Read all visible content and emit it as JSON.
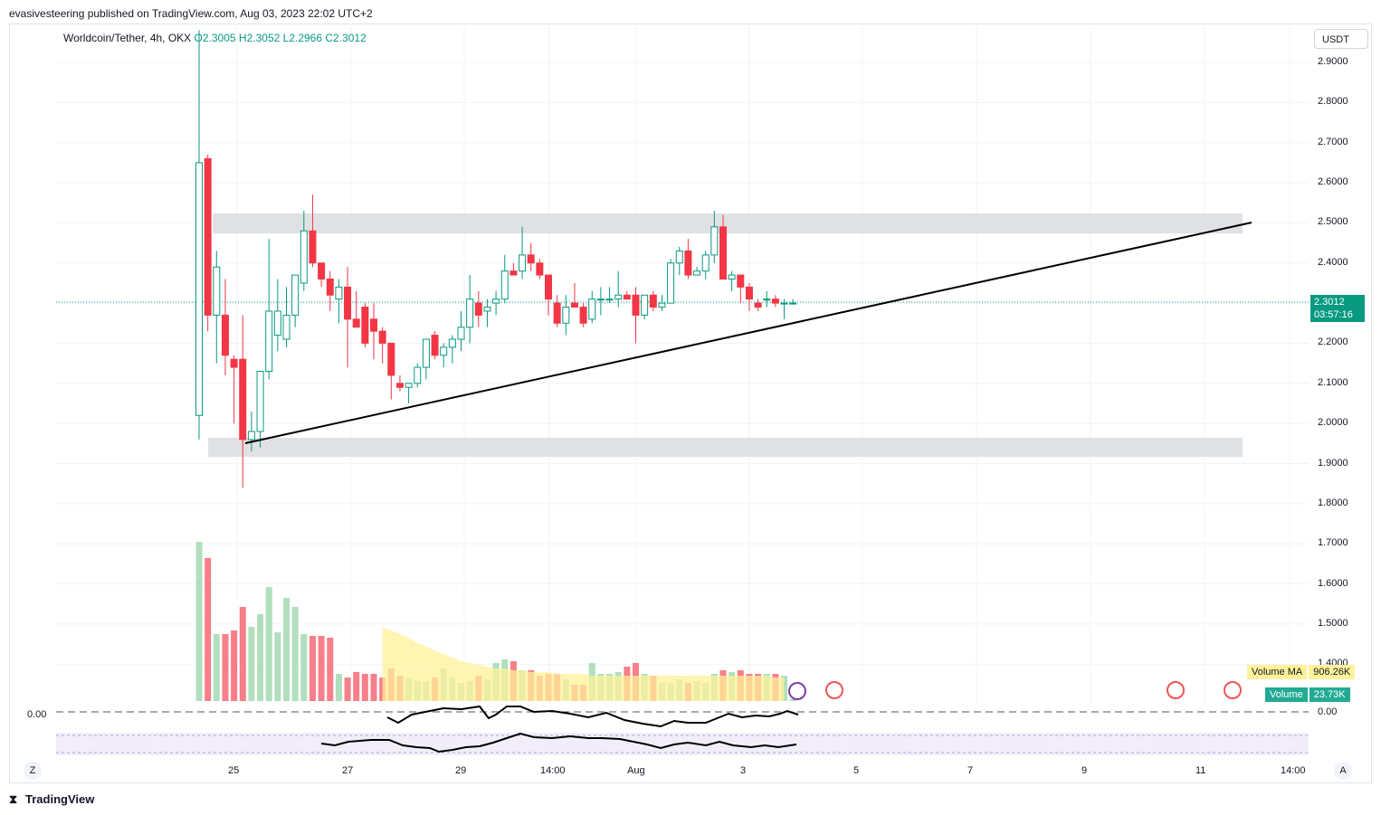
{
  "publisher": "evasivesteering published on TradingView.com, Aug 03, 2023 22:02 UTC+2",
  "legend": {
    "symbol": "Worldcoin/Tether, 4h, OKX",
    "o_label": "O",
    "o": "2.3005",
    "h_label": "H",
    "h": "2.3052",
    "l_label": "L",
    "l": "2.2966",
    "c_label": "C",
    "c": "2.3012"
  },
  "currency": "USDT",
  "last_price": "2.3012",
  "countdown": "03:57:16",
  "volume_ma": {
    "label": "Volume MA",
    "value": "906.26K"
  },
  "volume": {
    "label": "Volume",
    "value": "23.73K"
  },
  "osc_zero_left": "0.00",
  "osc_zero_right": "0.00",
  "corner_left": "Z",
  "corner_right": "A",
  "brand": "TradingView",
  "colors": {
    "up": "#089981",
    "down": "#f23645",
    "up_vol": "#a9dcb6",
    "down_vol": "#f7707c",
    "vol_ma": "#fff29a",
    "band": "#e0e1e4"
  },
  "chart_data": {
    "type": "candlestick",
    "title": "Worldcoin/Tether, 4h, OKX",
    "y_axis_ticks": [
      "2.9000",
      "2.8000",
      "2.7000",
      "2.6000",
      "2.5000",
      "2.4000",
      "2.3000",
      "2.2000",
      "2.1000",
      "2.0000",
      "1.9000",
      "1.8000",
      "1.7000",
      "1.6000",
      "1.5000",
      "1.4000"
    ],
    "x_axis_ticks": [
      "25",
      "27",
      "29",
      "14:00",
      "Aug",
      "3",
      "5",
      "7",
      "9",
      "11",
      "14:00"
    ],
    "ylim": [
      1.37,
      2.97
    ],
    "candles": [
      {
        "o": 2.02,
        "h": 2.98,
        "l": 1.96,
        "c": 2.65
      },
      {
        "o": 2.66,
        "h": 2.67,
        "l": 2.23,
        "c": 2.27
      },
      {
        "o": 2.27,
        "h": 2.43,
        "l": 2.15,
        "c": 2.39
      },
      {
        "o": 2.27,
        "h": 2.36,
        "l": 2.12,
        "c": 2.17
      },
      {
        "o": 2.16,
        "h": 2.17,
        "l": 2.0,
        "c": 2.14
      },
      {
        "o": 2.16,
        "h": 2.27,
        "l": 1.84,
        "c": 1.96
      },
      {
        "o": 1.96,
        "h": 2.03,
        "l": 1.93,
        "c": 1.98
      },
      {
        "o": 1.98,
        "h": 2.13,
        "l": 1.94,
        "c": 2.13
      },
      {
        "o": 2.13,
        "h": 2.46,
        "l": 2.11,
        "c": 2.28
      },
      {
        "o": 2.22,
        "h": 2.36,
        "l": 2.18,
        "c": 2.28
      },
      {
        "o": 2.21,
        "h": 2.34,
        "l": 2.19,
        "c": 2.27
      },
      {
        "o": 2.27,
        "h": 2.37,
        "l": 2.24,
        "c": 2.37
      },
      {
        "o": 2.35,
        "h": 2.53,
        "l": 2.33,
        "c": 2.48
      },
      {
        "o": 2.48,
        "h": 2.57,
        "l": 2.39,
        "c": 2.4
      },
      {
        "o": 2.4,
        "h": 2.4,
        "l": 2.34,
        "c": 2.36
      },
      {
        "o": 2.36,
        "h": 2.38,
        "l": 2.28,
        "c": 2.32
      },
      {
        "o": 2.31,
        "h": 2.36,
        "l": 2.25,
        "c": 2.34
      },
      {
        "o": 2.34,
        "h": 2.39,
        "l": 2.14,
        "c": 2.26
      },
      {
        "o": 2.26,
        "h": 2.33,
        "l": 2.24,
        "c": 2.24
      },
      {
        "o": 2.29,
        "h": 2.3,
        "l": 2.19,
        "c": 2.2
      },
      {
        "o": 2.26,
        "h": 2.3,
        "l": 2.16,
        "c": 2.23
      },
      {
        "o": 2.23,
        "h": 2.24,
        "l": 2.15,
        "c": 2.2
      },
      {
        "o": 2.2,
        "h": 2.2,
        "l": 2.06,
        "c": 2.12
      },
      {
        "o": 2.1,
        "h": 2.12,
        "l": 2.08,
        "c": 2.09
      },
      {
        "o": 2.09,
        "h": 2.1,
        "l": 2.05,
        "c": 2.1
      },
      {
        "o": 2.1,
        "h": 2.15,
        "l": 2.09,
        "c": 2.14
      },
      {
        "o": 2.14,
        "h": 2.21,
        "l": 2.11,
        "c": 2.21
      },
      {
        "o": 2.22,
        "h": 2.23,
        "l": 2.16,
        "c": 2.17
      },
      {
        "o": 2.17,
        "h": 2.2,
        "l": 2.14,
        "c": 2.19
      },
      {
        "o": 2.19,
        "h": 2.22,
        "l": 2.15,
        "c": 2.21
      },
      {
        "o": 2.21,
        "h": 2.28,
        "l": 2.18,
        "c": 2.24
      },
      {
        "o": 2.24,
        "h": 2.37,
        "l": 2.2,
        "c": 2.31
      },
      {
        "o": 2.3,
        "h": 2.33,
        "l": 2.24,
        "c": 2.27
      },
      {
        "o": 2.28,
        "h": 2.31,
        "l": 2.24,
        "c": 2.29
      },
      {
        "o": 2.3,
        "h": 2.33,
        "l": 2.27,
        "c": 2.31
      },
      {
        "o": 2.31,
        "h": 2.42,
        "l": 2.3,
        "c": 2.38
      },
      {
        "o": 2.38,
        "h": 2.4,
        "l": 2.37,
        "c": 2.37
      },
      {
        "o": 2.38,
        "h": 2.49,
        "l": 2.36,
        "c": 2.42
      },
      {
        "o": 2.42,
        "h": 2.45,
        "l": 2.38,
        "c": 2.4
      },
      {
        "o": 2.4,
        "h": 2.41,
        "l": 2.36,
        "c": 2.37
      },
      {
        "o": 2.37,
        "h": 2.37,
        "l": 2.27,
        "c": 2.31
      },
      {
        "o": 2.3,
        "h": 2.32,
        "l": 2.24,
        "c": 2.25
      },
      {
        "o": 2.25,
        "h": 2.32,
        "l": 2.22,
        "c": 2.29
      },
      {
        "o": 2.3,
        "h": 2.35,
        "l": 2.29,
        "c": 2.29
      },
      {
        "o": 2.29,
        "h": 2.3,
        "l": 2.24,
        "c": 2.25
      },
      {
        "o": 2.26,
        "h": 2.33,
        "l": 2.25,
        "c": 2.31
      },
      {
        "o": 2.31,
        "h": 2.34,
        "l": 2.27,
        "c": 2.31
      },
      {
        "o": 2.31,
        "h": 2.34,
        "l": 2.3,
        "c": 2.31
      },
      {
        "o": 2.31,
        "h": 2.38,
        "l": 2.29,
        "c": 2.32
      },
      {
        "o": 2.32,
        "h": 2.33,
        "l": 2.31,
        "c": 2.31
      },
      {
        "o": 2.32,
        "h": 2.34,
        "l": 2.2,
        "c": 2.27
      },
      {
        "o": 2.27,
        "h": 2.32,
        "l": 2.26,
        "c": 2.32
      },
      {
        "o": 2.32,
        "h": 2.33,
        "l": 2.28,
        "c": 2.29
      },
      {
        "o": 2.29,
        "h": 2.32,
        "l": 2.28,
        "c": 2.3
      },
      {
        "o": 2.3,
        "h": 2.41,
        "l": 2.3,
        "c": 2.4
      },
      {
        "o": 2.4,
        "h": 2.44,
        "l": 2.37,
        "c": 2.43
      },
      {
        "o": 2.43,
        "h": 2.46,
        "l": 2.36,
        "c": 2.37
      },
      {
        "o": 2.37,
        "h": 2.39,
        "l": 2.37,
        "c": 2.38
      },
      {
        "o": 2.38,
        "h": 2.43,
        "l": 2.36,
        "c": 2.42
      },
      {
        "o": 2.42,
        "h": 2.53,
        "l": 2.4,
        "c": 2.49
      },
      {
        "o": 2.49,
        "h": 2.52,
        "l": 2.36,
        "c": 2.36
      },
      {
        "o": 2.36,
        "h": 2.38,
        "l": 2.33,
        "c": 2.37
      },
      {
        "o": 2.37,
        "h": 2.37,
        "l": 2.3,
        "c": 2.34
      },
      {
        "o": 2.34,
        "h": 2.35,
        "l": 2.28,
        "c": 2.31
      },
      {
        "o": 2.3,
        "h": 2.31,
        "l": 2.28,
        "c": 2.29
      },
      {
        "o": 2.31,
        "h": 2.33,
        "l": 2.29,
        "c": 2.31
      },
      {
        "o": 2.31,
        "h": 2.32,
        "l": 2.29,
        "c": 2.3
      },
      {
        "o": 2.3,
        "h": 2.31,
        "l": 2.26,
        "c": 2.3
      },
      {
        "o": 2.3,
        "h": 2.31,
        "l": 2.3,
        "c": 2.3
      }
    ],
    "volume": [
      88,
      79,
      37,
      37,
      39,
      52,
      41,
      48,
      63,
      38,
      57,
      52,
      37,
      36,
      36,
      35,
      15,
      13,
      16,
      15,
      15,
      13,
      18,
      14,
      13,
      11,
      11,
      13,
      18,
      13,
      10,
      11,
      14,
      12,
      21,
      23,
      22,
      17,
      17,
      14,
      15,
      15,
      12,
      9,
      9,
      21,
      15,
      15,
      16,
      19,
      21,
      15,
      14,
      10,
      10,
      12,
      10,
      11,
      10,
      15,
      17,
      16,
      17,
      15,
      15,
      15,
      15,
      14,
      1
    ],
    "volume_ma": [
      0,
      0,
      0,
      0,
      0,
      0,
      0,
      0,
      0,
      0,
      0,
      0,
      0,
      0,
      0,
      0,
      0,
      0,
      0,
      0,
      0,
      41,
      39,
      37,
      35,
      32,
      30,
      28,
      26,
      24,
      22,
      21,
      20,
      19,
      18,
      18,
      17,
      17,
      16,
      16,
      16,
      15,
      15,
      15,
      15,
      14,
      14,
      14,
      14,
      14,
      14,
      14,
      14,
      14,
      14,
      14,
      14,
      14,
      14,
      14,
      14,
      14,
      14,
      14,
      14,
      14,
      13,
      13,
      0
    ]
  }
}
